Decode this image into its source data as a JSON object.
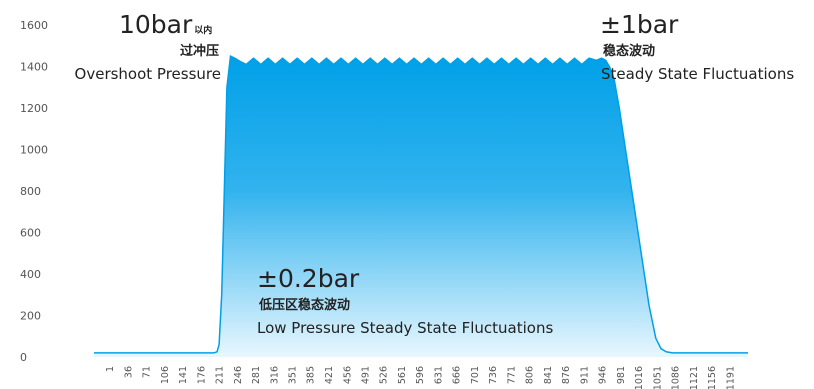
{
  "chart_data": {
    "type": "area",
    "title": "",
    "xlabel": "",
    "ylabel": "",
    "ylim": [
      0,
      1600
    ],
    "yticks": [
      0,
      200,
      400,
      600,
      800,
      1000,
      1200,
      1400,
      1600
    ],
    "xlim": [
      -30,
      1225
    ],
    "xticks": [
      1,
      36,
      71,
      106,
      141,
      176,
      211,
      246,
      281,
      316,
      351,
      385,
      421,
      456,
      491,
      526,
      561,
      596,
      631,
      666,
      701,
      736,
      771,
      806,
      841,
      876,
      911,
      946,
      981,
      1016,
      1051,
      1086,
      1121,
      1156,
      1191
    ],
    "grid": false,
    "fill_color_top": "#00A0E8",
    "fill_color_bottom": "#E8F7FE",
    "series": [
      {
        "name": "",
        "x": [
          -30,
          200,
          206,
          210,
          215,
          220,
          225,
          232,
          240,
          250,
          262,
          276,
          290,
          304,
          318,
          332,
          346,
          360,
          374,
          388,
          402,
          416,
          430,
          444,
          458,
          472,
          486,
          500,
          514,
          528,
          542,
          556,
          570,
          584,
          598,
          612,
          626,
          640,
          654,
          668,
          682,
          696,
          710,
          724,
          738,
          752,
          766,
          780,
          794,
          808,
          822,
          836,
          850,
          864,
          878,
          892,
          906,
          920,
          934,
          944,
          952,
          960,
          968,
          978,
          990,
          1005,
          1020,
          1035,
          1048,
          1058,
          1068,
          1080,
          1095,
          1225
        ],
        "y": [
          20,
          20,
          25,
          60,
          300,
          800,
          1300,
          1450,
          1440,
          1425,
          1410,
          1440,
          1410,
          1440,
          1410,
          1440,
          1410,
          1440,
          1410,
          1440,
          1410,
          1440,
          1410,
          1440,
          1410,
          1440,
          1410,
          1440,
          1410,
          1440,
          1410,
          1440,
          1410,
          1440,
          1410,
          1440,
          1410,
          1440,
          1410,
          1440,
          1410,
          1440,
          1410,
          1440,
          1410,
          1440,
          1410,
          1440,
          1410,
          1440,
          1410,
          1440,
          1410,
          1440,
          1410,
          1440,
          1410,
          1440,
          1430,
          1440,
          1430,
          1395,
          1340,
          1200,
          1000,
          750,
          500,
          250,
          90,
          40,
          25,
          20,
          20,
          20
        ]
      }
    ],
    "annotations": {
      "overshoot_value": "10bar",
      "overshoot_suffix": "以内",
      "overshoot_cn": "过冲压",
      "overshoot_en": "Overshoot Pressure",
      "steady_value": "±1bar",
      "steady_cn": "稳态波动",
      "steady_en": "Steady State Fluctuations",
      "low_value": "±0.2bar",
      "low_cn": "低压区稳态波动",
      "low_en": "Low Pressure Steady State Fluctuations"
    }
  }
}
